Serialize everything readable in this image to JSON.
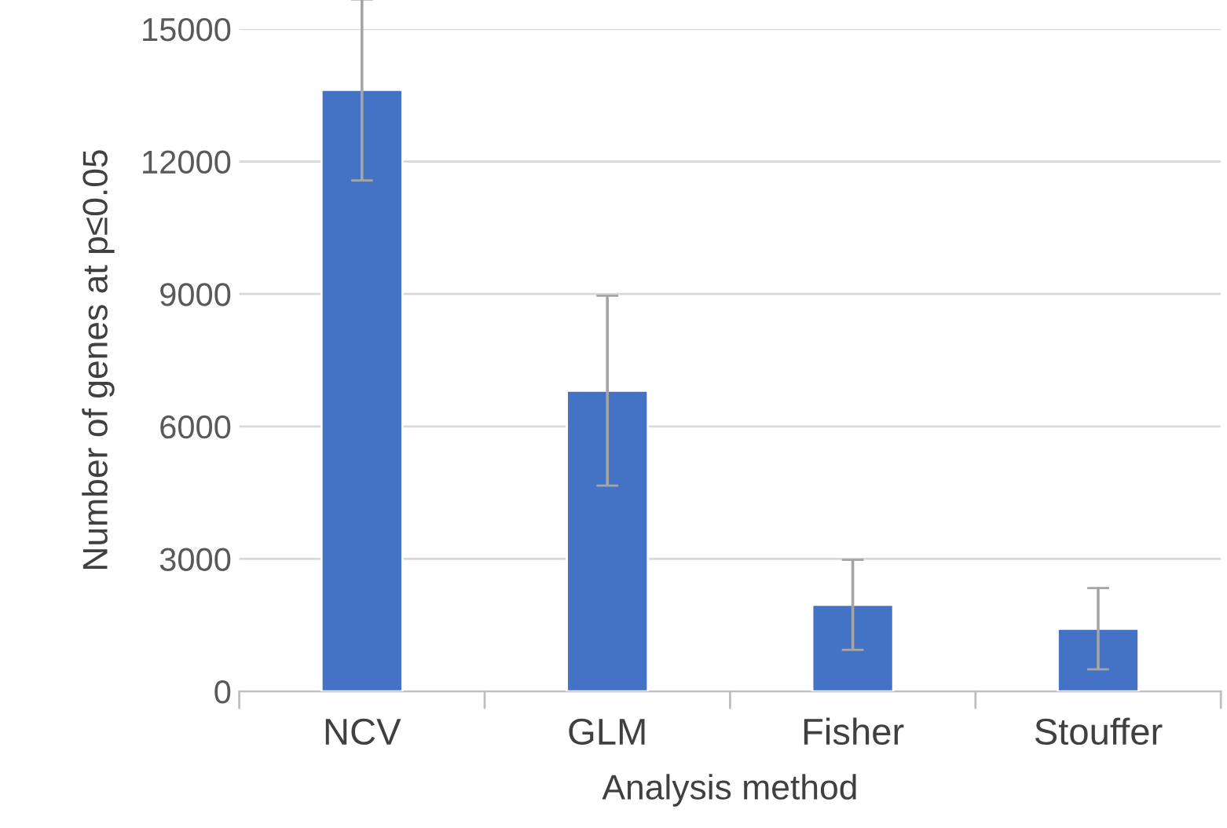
{
  "chart_data": {
    "type": "bar",
    "xlabel": "Analysis method",
    "ylabel": "Number of genes at p≤0.05",
    "categories": [
      "NCV",
      "GLM",
      "Fisher",
      "Stouffer"
    ],
    "values": [
      13620,
      6810,
      1960,
      1420
    ],
    "errors": [
      2050,
      2150,
      1020,
      920
    ],
    "color": "#4472c4",
    "ylim": [
      0,
      15000
    ],
    "yticks": [
      0,
      3000,
      6000,
      9000,
      12000,
      15000
    ],
    "grid": "y"
  }
}
